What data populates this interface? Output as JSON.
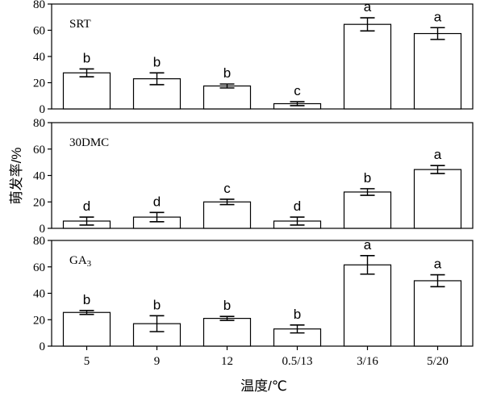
{
  "chart_data": {
    "type": "bar",
    "categories": [
      "5",
      "9",
      "12",
      "0.5/13",
      "3/16",
      "5/20"
    ],
    "xlabel": "温度/℃",
    "ylabel": "萌发率/%",
    "ylim": [
      0,
      80
    ],
    "yticks": [
      0,
      20,
      40,
      60,
      80
    ],
    "panels": [
      {
        "label": "SRT",
        "values": [
          27.5,
          23,
          17.5,
          4,
          64.5,
          57.5
        ],
        "errors": [
          3,
          4.5,
          1.5,
          1.5,
          5,
          4.5
        ],
        "letters": [
          "b",
          "b",
          "b",
          "c",
          "a",
          "a"
        ]
      },
      {
        "label": "30DMC",
        "values": [
          5.5,
          8.5,
          20,
          5.5,
          27.5,
          44.5
        ],
        "errors": [
          3,
          3.5,
          2,
          3,
          2.5,
          3
        ],
        "letters": [
          "d",
          "d",
          "c",
          "d",
          "b",
          "a"
        ]
      },
      {
        "label_main": "GA",
        "label_sub": "3",
        "values": [
          25.5,
          17,
          21,
          13,
          61.5,
          49.5
        ],
        "errors": [
          1.5,
          6,
          1.5,
          3,
          7,
          4.5
        ],
        "letters": [
          "b",
          "b",
          "b",
          "b",
          "a",
          "a"
        ]
      }
    ],
    "grid": false,
    "legend": "none"
  }
}
